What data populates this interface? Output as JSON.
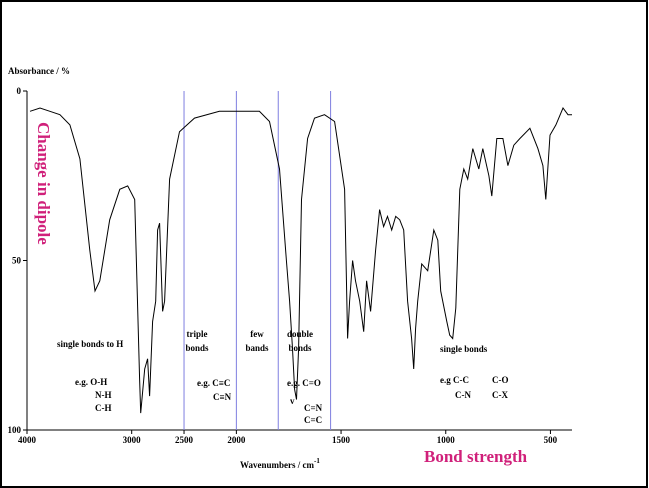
{
  "chart_data": {
    "type": "line",
    "y_label": "Absorbance / %",
    "x_label": "Wavenumbers / cm",
    "x_label_superscript": "-1",
    "left_note": "Change in dipole",
    "bottom_note": "Bond strength",
    "xlim": [
      4000,
      397
    ],
    "x_scale_change": 2000,
    "xticks": [
      4000,
      3000,
      2500,
      2000,
      1500,
      1000,
      500
    ],
    "ylim": [
      0,
      100
    ],
    "yticks": [
      0,
      50,
      100
    ],
    "y_inverted": true,
    "region_lines": [
      2500,
      2000,
      1800,
      1550
    ],
    "region_color": "#7f7fe0",
    "series": [
      {
        "color": "#000000",
        "x": [
          3971,
          3876,
          3781,
          3686,
          3590,
          3495,
          3400,
          3350,
          3305,
          3210,
          3114,
          3038,
          2971,
          2924,
          2914,
          2876,
          2848,
          2829,
          2800,
          2771,
          2752,
          2733,
          2705,
          2686,
          2638,
          2543,
          2400,
          2162,
          2000,
          1890,
          1842,
          1794,
          1761,
          1746,
          1732,
          1722,
          1713,
          1703,
          1689,
          1660,
          1627,
          1579,
          1531,
          1483,
          1469,
          1459,
          1445,
          1431,
          1411,
          1392,
          1378,
          1359,
          1335,
          1316,
          1297,
          1278,
          1258,
          1239,
          1220,
          1201,
          1182,
          1163,
          1153,
          1144,
          1134,
          1115,
          1086,
          1057,
          1038,
          1024,
          995,
          981,
          967,
          952,
          933,
          914,
          895,
          871,
          842,
          823,
          794,
          780,
          756,
          727,
          703,
          675,
          646,
          598,
          560,
          536,
          522,
          502,
          474,
          440,
          416,
          397
        ],
        "values": [
          6,
          5,
          6,
          7,
          10,
          20,
          47,
          59,
          56,
          38,
          29,
          28,
          32,
          85,
          95,
          82,
          79,
          90,
          68,
          62,
          41,
          39,
          65,
          62,
          26,
          12,
          8,
          6,
          6,
          6,
          9,
          23,
          50,
          62,
          76,
          88,
          91,
          76,
          32,
          14,
          8,
          7,
          9,
          29,
          73,
          62,
          50,
          56,
          62,
          71,
          56,
          65,
          47,
          35,
          40,
          37,
          41,
          37,
          38,
          41,
          62,
          73,
          82,
          70,
          62,
          51,
          53,
          41,
          44,
          59,
          68,
          72,
          73,
          64,
          29,
          23,
          26,
          17,
          23,
          17,
          25,
          31,
          14,
          14,
          22,
          16,
          14,
          11,
          17,
          22,
          32,
          13,
          10,
          5,
          7,
          7
        ]
      }
    ],
    "annotations": [
      "single bonds to H",
      "triple",
      "bonds",
      "few",
      "bands",
      "double",
      "bonds",
      "e.g. O-H",
      "N-H",
      "C-H",
      "e.g. C≡C",
      "C≡N",
      "e.g. C=O",
      "v",
      "C=N",
      "C=C",
      "single bonds",
      "e.g C-C",
      "C-O",
      "C-N",
      "C-X"
    ]
  }
}
